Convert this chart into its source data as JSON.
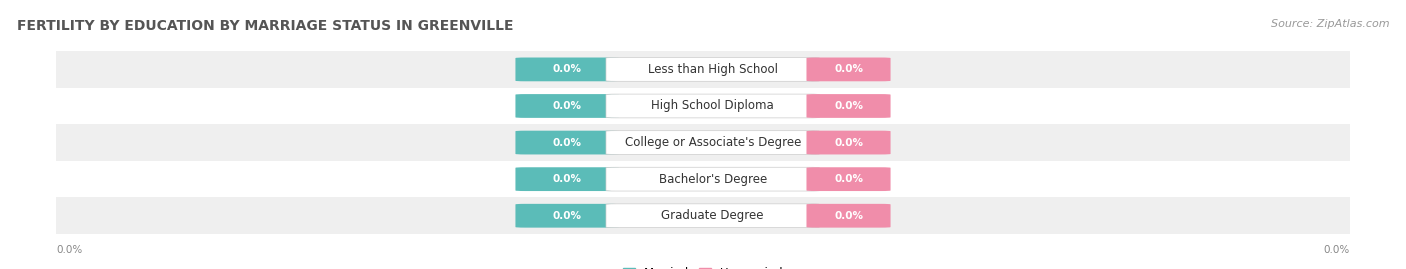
{
  "title": "FERTILITY BY EDUCATION BY MARRIAGE STATUS IN GREENVILLE",
  "source": "Source: ZipAtlas.com",
  "categories": [
    "Less than High School",
    "High School Diploma",
    "College or Associate's Degree",
    "Bachelor's Degree",
    "Graduate Degree"
  ],
  "married_values": [
    0.0,
    0.0,
    0.0,
    0.0,
    0.0
  ],
  "unmarried_values": [
    0.0,
    0.0,
    0.0,
    0.0,
    0.0
  ],
  "married_color": "#5bbcb8",
  "unmarried_color": "#f08daa",
  "row_bg_colors": [
    "#efefef",
    "#ffffff",
    "#efefef",
    "#ffffff",
    "#efefef"
  ],
  "title_fontsize": 10,
  "source_fontsize": 8,
  "label_fontsize": 8.5,
  "value_fontsize": 7.5,
  "legend_fontsize": 8.5,
  "axis_value_left": "0.0%",
  "axis_value_right": "0.0%",
  "figsize": [
    14.06,
    2.69
  ],
  "dpi": 100
}
